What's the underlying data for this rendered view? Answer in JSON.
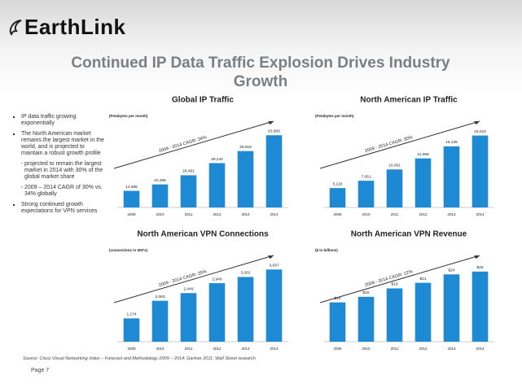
{
  "slide": {
    "logo": "EarthLink",
    "title": "Continued IP Data Traffic Explosion Drives Industry Growth",
    "bullets": [
      {
        "text": "IP data traffic growing exponentially"
      },
      {
        "text": "The North American market remains the largest market in the world, and is projected to maintain a robust growth profile",
        "items": [
          "projected to remain the largest market in 2014 with 30% of the global market share",
          "2009 – 2014  CAGR of 30% vs. 34% globally"
        ]
      },
      {
        "text": "Strong continued growth expectations for VPN services"
      }
    ],
    "source": "Source:  Cisco Visual Networking Index – Forecast and Methodology 2009 – 2014; Gartner 2011; Wall Street research",
    "page": "Page 7"
  },
  "chart_data": [
    {
      "type": "bar",
      "title": "Global IP Traffic",
      "subtitle": "(Petabytes per month)",
      "annotation": "2009 - 2014 CAGR: 34%",
      "categories": [
        "2009",
        "2010",
        "2011",
        "2012",
        "2013",
        "2014"
      ],
      "values": [
        14686,
        20396,
        28491,
        39242,
        49919,
        63909
      ],
      "value_labels": [
        "14,686",
        "20,396",
        "28,491",
        "39,242",
        "49,919",
        "63,909"
      ],
      "color": "#1e8ad3",
      "ylim": [
        0,
        72000
      ]
    },
    {
      "type": "bar",
      "title": "North American IP Traffic",
      "subtitle": "(Petabytes per month)",
      "annotation": "2009 - 2014 CAGR: 30%",
      "categories": [
        "2009",
        "2010",
        "2011",
        "2012",
        "2013",
        "2014"
      ],
      "values": [
        5119,
        7061,
        10051,
        12966,
        16136,
        19010
      ],
      "value_labels": [
        "5,119",
        "7,061",
        "10,051",
        "12,966",
        "16,136",
        "19,010"
      ],
      "color": "#1e8ad3",
      "ylim": [
        0,
        21500
      ]
    },
    {
      "type": "bar",
      "title": "North American VPN Connections",
      "subtitle": "(connections in 000's)",
      "annotation": "2009 - 2014 CAGR: 25%",
      "categories": [
        "2009",
        "2010",
        "2011",
        "2012",
        "2013",
        "2014"
      ],
      "values": [
        1174,
        2063,
        2449,
        2949,
        3262,
        3637
      ],
      "value_labels": [
        "1,174",
        "2,063",
        "2,449",
        "2,949",
        "3,262",
        "3,637"
      ],
      "color": "#1e8ad3",
      "ylim": [
        0,
        4100
      ]
    },
    {
      "type": "bar",
      "title": "North American VPN Revenue",
      "subtitle": "($ in billions)",
      "annotation": "2009 - 2014 CAGR: 12%",
      "categories": [
        "2009",
        "2010",
        "2011",
        "2012",
        "2013",
        "2014"
      ],
      "values": [
        14,
        16,
        19,
        21,
        24,
        25
      ],
      "value_labels": [
        "$14",
        "$16",
        "$19",
        "$21",
        "$24",
        "$25"
      ],
      "color": "#1e8ad3",
      "ylim": [
        0,
        29
      ]
    }
  ]
}
